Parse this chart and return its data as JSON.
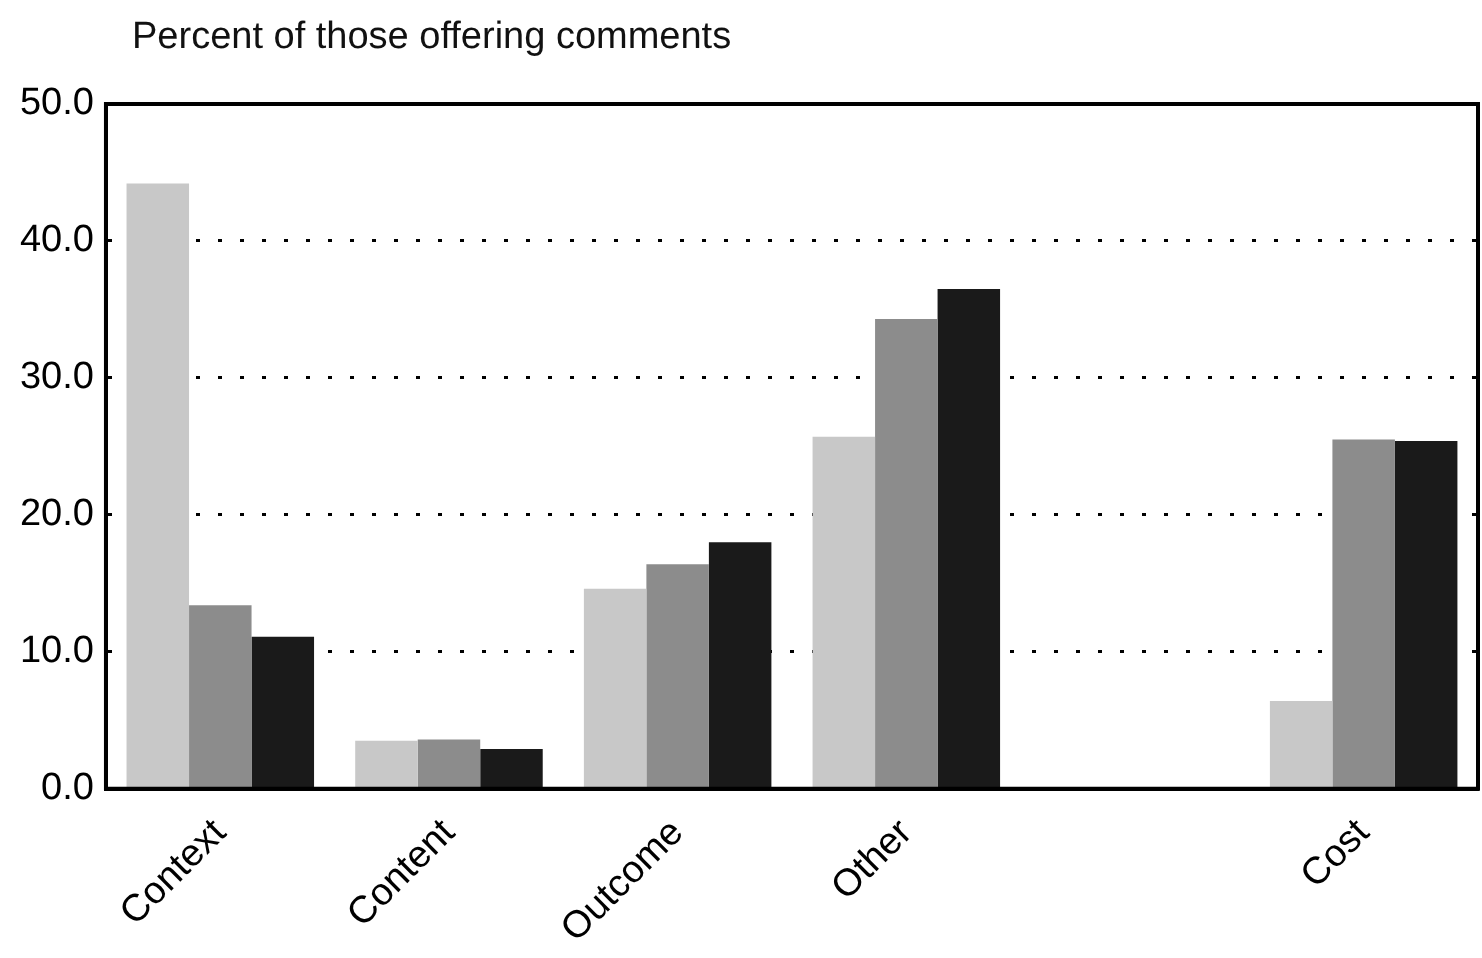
{
  "chart_data": {
    "type": "bar",
    "ylabel": "Percent of those offering comments",
    "categories": [
      "Context",
      "Content",
      "Outcome",
      "Other",
      null,
      "Cost"
    ],
    "series": [
      {
        "color": "#c8c8c8",
        "values": [
          44.2,
          3.5,
          14.6,
          25.7,
          null,
          6.4
        ]
      },
      {
        "color": "#8c8c8c",
        "values": [
          13.4,
          3.6,
          16.4,
          34.3,
          null,
          25.5
        ]
      },
      {
        "color": "#1a1a1a",
        "values": [
          11.1,
          2.9,
          18.0,
          36.5,
          null,
          25.4
        ]
      }
    ],
    "ylim": [
      0,
      50
    ],
    "yticks": [
      {
        "value": 0,
        "label": "0.0"
      },
      {
        "value": 10,
        "label": "10.0"
      },
      {
        "value": 20,
        "label": "20.0"
      },
      {
        "value": 30,
        "label": "30.0"
      },
      {
        "value": 40,
        "label": "40.0"
      },
      {
        "value": 50,
        "label": "50.0"
      }
    ],
    "grid": "y",
    "legend": false
  }
}
